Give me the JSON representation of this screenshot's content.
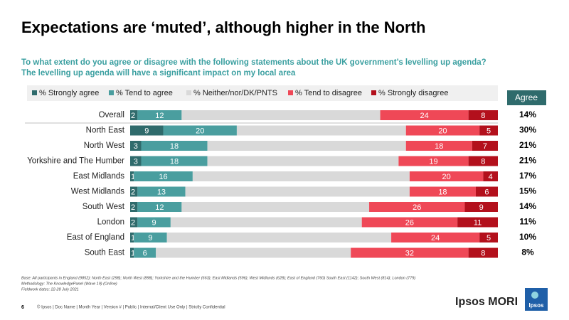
{
  "chart_data": {
    "type": "bar",
    "orientation": "horizontal",
    "stacked": true,
    "title": "Expectations are ‘muted’, although higher in the North",
    "subtitle": [
      "To what extent do you agree or disagree with the following statements about the UK government’s levelling up agenda?",
      "The levelling up agenda will have a significant impact on my  local area"
    ],
    "categories": [
      "Overall",
      "North East",
      "North West",
      "Yorkshire and The Humber",
      "East Midlands",
      "West Midlands",
      "South West",
      "London",
      "East of England",
      "South East"
    ],
    "series": [
      {
        "name": "% Strongly agree",
        "color": "#2f6b6c",
        "data_labels": true,
        "values": [
          2,
          9,
          3,
          3,
          1,
          2,
          2,
          2,
          1,
          1
        ]
      },
      {
        "name": "% Tend to agree",
        "color": "#4a9e9f",
        "data_labels": true,
        "values": [
          12,
          20,
          18,
          18,
          16,
          13,
          12,
          9,
          9,
          6
        ]
      },
      {
        "name": "% Neither/nor/DK/PNTS",
        "color": "#d9d9d9",
        "data_labels": false,
        "values": [
          54,
          46,
          54,
          52,
          59,
          61,
          51,
          52,
          61,
          53
        ]
      },
      {
        "name": "% Tend to disagree",
        "color": "#ef4857",
        "data_labels": true,
        "values": [
          24,
          20,
          18,
          19,
          20,
          18,
          26,
          26,
          24,
          32
        ]
      },
      {
        "name": "% Strongly disagree",
        "color": "#b3101c",
        "data_labels": true,
        "values": [
          8,
          5,
          7,
          8,
          4,
          6,
          9,
          11,
          5,
          8
        ]
      }
    ],
    "xlim": [
      0,
      100
    ],
    "legend": "top",
    "agree_column": {
      "title": "Agree",
      "labels": [
        "14%",
        "30%",
        "21%",
        "21%",
        "17%",
        "15%",
        "14%",
        "11%",
        "10%",
        "8%"
      ]
    }
  },
  "notes": [
    "Base: All participants in England (9852); North East (298); North West (898); Yorkshire and the Humber (663); East Midlands (596); West Midlands (628); East of England (760) South East (1142); South West (814); London (779)",
    "Methodology: The KnowledgePanel (Wave 19) (Online)",
    "Fieldwork dates: 22-28 July 2021"
  ],
  "footer": {
    "page": "6",
    "text": "© Ipsos | Doc Name | Month Year | Version # | Public | Internal/Client  Use Only | Strictly Confidential",
    "brand": "Ipsos MORI",
    "logo": "Ipsos"
  }
}
